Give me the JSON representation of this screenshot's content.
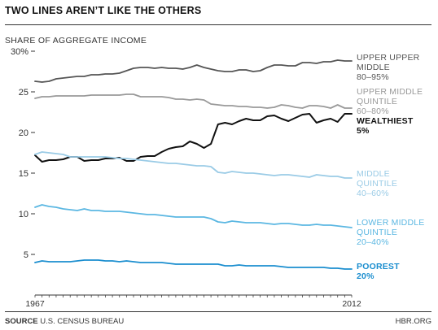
{
  "header": {
    "title": "TWO LINES AREN’T LIKE THE OTHERS",
    "ylabel": "SHARE OF AGGREGATE INCOME"
  },
  "footer": {
    "source_label": "SOURCE",
    "source_text": "U.S. CENSUS BUREAU",
    "credit": "HBR.ORG"
  },
  "chart_data": {
    "type": "line",
    "title": "TWO LINES AREN’T LIKE THE OTHERS",
    "ylabel": "SHARE OF AGGREGATE INCOME",
    "xlabel": "",
    "xlim": [
      1967,
      2012
    ],
    "ylim": [
      0,
      30
    ],
    "y_ticks": [
      {
        "value": 30,
        "label": "30%"
      },
      {
        "value": 25,
        "label": "25"
      },
      {
        "value": 20,
        "label": "20"
      },
      {
        "value": 15,
        "label": "15"
      },
      {
        "value": 10,
        "label": "10"
      },
      {
        "value": 5,
        "label": "5"
      }
    ],
    "x_tick_labels": [
      {
        "value": 1967,
        "label": "1967"
      },
      {
        "value": 2012,
        "label": "2012"
      }
    ],
    "grid": false,
    "x": [
      1967,
      1968,
      1969,
      1970,
      1971,
      1972,
      1973,
      1974,
      1975,
      1976,
      1977,
      1978,
      1979,
      1980,
      1981,
      1982,
      1983,
      1984,
      1985,
      1986,
      1987,
      1988,
      1989,
      1990,
      1991,
      1992,
      1993,
      1994,
      1995,
      1996,
      1997,
      1998,
      1999,
      2000,
      2001,
      2002,
      2003,
      2004,
      2005,
      2006,
      2007,
      2008,
      2009,
      2010,
      2011,
      2012
    ],
    "series": [
      {
        "name": "UPPER UPPER MIDDLE 80–95%",
        "label_lines": [
          "UPPER UPPER",
          "MIDDLE",
          "80–95%"
        ],
        "color": "#555555",
        "label_bold": false,
        "values": [
          26.3,
          26.2,
          26.3,
          26.6,
          26.7,
          26.8,
          26.9,
          26.9,
          27.1,
          27.1,
          27.2,
          27.2,
          27.3,
          27.6,
          27.9,
          28.0,
          28.0,
          27.9,
          28.0,
          27.9,
          27.9,
          27.8,
          28.0,
          28.3,
          28.0,
          27.8,
          27.6,
          27.5,
          27.5,
          27.7,
          27.7,
          27.5,
          27.6,
          28.0,
          28.3,
          28.3,
          28.2,
          28.2,
          28.6,
          28.6,
          28.5,
          28.7,
          28.7,
          28.9,
          28.8,
          28.8
        ]
      },
      {
        "name": "UPPER MIDDLE QUINTILE 60–80%",
        "label_lines": [
          "UPPER MIDDLE",
          "QUINTILE",
          "60–80%"
        ],
        "color": "#999999",
        "label_bold": false,
        "values": [
          24.2,
          24.4,
          24.4,
          24.5,
          24.5,
          24.5,
          24.5,
          24.5,
          24.6,
          24.6,
          24.6,
          24.6,
          24.6,
          24.7,
          24.7,
          24.4,
          24.4,
          24.4,
          24.4,
          24.3,
          24.1,
          24.1,
          24.0,
          24.1,
          24.0,
          23.5,
          23.4,
          23.3,
          23.3,
          23.2,
          23.2,
          23.1,
          23.1,
          23.0,
          23.1,
          23.4,
          23.3,
          23.1,
          23.0,
          23.3,
          23.3,
          23.2,
          23.0,
          23.4,
          23.0,
          23.0
        ]
      },
      {
        "name": "WEALTHIEST 5%",
        "label_lines": [
          "WEALTHIEST",
          "5%"
        ],
        "color": "#111111",
        "label_bold": true,
        "values": [
          17.2,
          16.4,
          16.6,
          16.6,
          16.7,
          17.0,
          17.0,
          16.5,
          16.6,
          16.6,
          16.8,
          16.8,
          16.9,
          16.5,
          16.5,
          17.0,
          17.1,
          17.1,
          17.6,
          18.0,
          18.2,
          18.3,
          18.9,
          18.6,
          18.1,
          18.6,
          21.0,
          21.2,
          21.0,
          21.4,
          21.7,
          21.5,
          21.5,
          22.0,
          22.1,
          21.7,
          21.4,
          21.8,
          22.2,
          22.3,
          21.2,
          21.5,
          21.7,
          21.3,
          22.3,
          22.3
        ]
      },
      {
        "name": "MIDDLE QUINTILE 40–60%",
        "label_lines": [
          "MIDDLE",
          "QUINTILE",
          "40–60%"
        ],
        "color": "#9ACBE6",
        "label_bold": false,
        "values": [
          17.3,
          17.6,
          17.5,
          17.4,
          17.3,
          17.0,
          17.0,
          17.0,
          17.0,
          17.0,
          17.0,
          16.9,
          16.8,
          16.8,
          16.7,
          16.6,
          16.5,
          16.4,
          16.3,
          16.2,
          16.2,
          16.1,
          16.0,
          15.9,
          15.9,
          15.8,
          15.1,
          15.0,
          15.2,
          15.1,
          15.0,
          15.0,
          14.9,
          14.8,
          14.7,
          14.8,
          14.8,
          14.7,
          14.6,
          14.5,
          14.8,
          14.7,
          14.6,
          14.6,
          14.4,
          14.4
        ]
      },
      {
        "name": "LOWER MIDDLE QUINTILE 20–40%",
        "label_lines": [
          "LOWER MIDDLE",
          "QUINTILE",
          "20–40%"
        ],
        "color": "#5BB7E2",
        "label_bold": false,
        "values": [
          10.8,
          11.1,
          10.9,
          10.8,
          10.6,
          10.5,
          10.4,
          10.6,
          10.4,
          10.4,
          10.3,
          10.3,
          10.3,
          10.2,
          10.1,
          10.0,
          9.9,
          9.9,
          9.8,
          9.7,
          9.6,
          9.6,
          9.6,
          9.6,
          9.6,
          9.4,
          9.0,
          8.9,
          9.1,
          9.0,
          8.9,
          8.9,
          8.9,
          8.8,
          8.7,
          8.8,
          8.8,
          8.7,
          8.6,
          8.6,
          8.7,
          8.6,
          8.6,
          8.5,
          8.4,
          8.3
        ]
      },
      {
        "name": "POOREST 20%",
        "label_lines": [
          "POOREST",
          "20%"
        ],
        "color": "#1B8ECF",
        "label_bold": true,
        "values": [
          4.0,
          4.2,
          4.1,
          4.1,
          4.1,
          4.1,
          4.2,
          4.3,
          4.3,
          4.3,
          4.2,
          4.2,
          4.1,
          4.2,
          4.1,
          4.0,
          4.0,
          4.0,
          4.0,
          3.9,
          3.8,
          3.8,
          3.8,
          3.8,
          3.8,
          3.8,
          3.8,
          3.6,
          3.6,
          3.7,
          3.6,
          3.6,
          3.6,
          3.6,
          3.6,
          3.5,
          3.4,
          3.4,
          3.4,
          3.4,
          3.4,
          3.4,
          3.3,
          3.3,
          3.2,
          3.2
        ]
      }
    ]
  }
}
